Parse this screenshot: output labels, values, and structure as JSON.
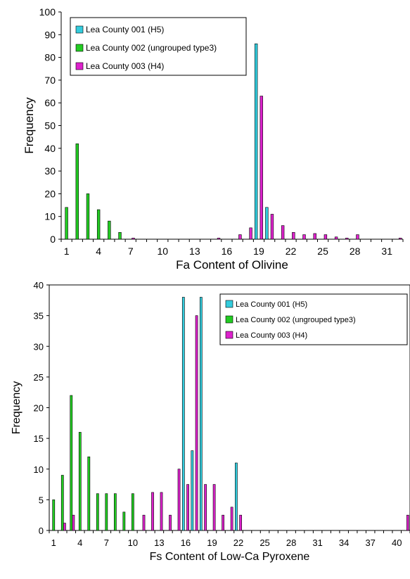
{
  "chart_data": [
    {
      "type": "bar",
      "title": "",
      "xlabel": "Fa Content of Olivine",
      "ylabel": "Frequency",
      "ylim": [
        0,
        100
      ],
      "yticks": [
        0,
        10,
        20,
        30,
        40,
        50,
        60,
        70,
        80,
        90,
        100
      ],
      "x": [
        1,
        2,
        3,
        4,
        5,
        6,
        7,
        8,
        9,
        10,
        11,
        12,
        13,
        14,
        15,
        16,
        17,
        18,
        19,
        20,
        21,
        22,
        23,
        24,
        25,
        26,
        27,
        28,
        29,
        30,
        31,
        32
      ],
      "xtick_labels": [
        "1",
        "4",
        "7",
        "10",
        "13",
        "16",
        "19",
        "22",
        "25",
        "28",
        "31"
      ],
      "xtick_values": [
        1,
        4,
        7,
        10,
        13,
        16,
        19,
        22,
        25,
        28,
        31
      ],
      "legend_position": "top-left",
      "series": [
        {
          "name": "Lea County 001 (H5)",
          "color": "#33ccdd",
          "values": [
            0,
            0,
            0,
            0,
            0,
            0,
            0,
            0,
            0,
            0,
            0,
            0,
            0,
            0,
            0,
            0,
            0,
            0,
            86,
            14,
            0,
            0,
            0,
            0,
            0,
            0,
            0,
            0,
            0,
            0,
            0,
            0
          ]
        },
        {
          "name": "Lea County 002 (ungrouped type3)",
          "color": "#22cc22",
          "values": [
            14,
            42,
            20,
            13,
            8,
            3,
            0,
            0,
            0,
            0,
            0,
            0,
            0,
            0,
            0,
            0,
            0,
            0,
            0,
            0,
            0,
            0,
            0,
            0,
            0,
            0,
            0,
            0,
            0,
            0,
            0,
            0
          ]
        },
        {
          "name": "Lea County 003 (H4)",
          "color": "#dd22cc",
          "values": [
            0,
            0,
            0,
            0,
            0,
            0,
            0.5,
            0,
            0,
            0,
            0,
            0,
            0,
            0,
            0.5,
            0,
            2,
            5,
            63,
            11,
            6,
            3,
            2,
            2.5,
            2,
            1,
            0.5,
            2,
            0,
            0,
            0,
            0.5
          ]
        }
      ]
    },
    {
      "type": "bar",
      "title": "",
      "xlabel": "Fs Content of Low-Ca Pyroxene",
      "ylabel": "Frequency",
      "ylim": [
        0,
        40
      ],
      "yticks": [
        0,
        5,
        10,
        15,
        20,
        25,
        30,
        35,
        40
      ],
      "x": [
        1,
        2,
        3,
        4,
        5,
        6,
        7,
        8,
        9,
        10,
        11,
        12,
        13,
        14,
        15,
        16,
        17,
        18,
        19,
        20,
        21,
        22,
        23,
        24,
        25,
        26,
        27,
        28,
        29,
        30,
        31,
        32,
        33,
        34,
        35,
        36,
        37,
        38,
        39,
        40,
        41
      ],
      "xtick_labels": [
        "1",
        "4",
        "7",
        "10",
        "13",
        "16",
        "19",
        "22",
        "25",
        "28",
        "31",
        "34",
        "37",
        "40"
      ],
      "xtick_values": [
        1,
        4,
        7,
        10,
        13,
        16,
        19,
        22,
        25,
        28,
        31,
        34,
        37,
        40
      ],
      "legend_position": "top-right",
      "series": [
        {
          "name": "Lea County 001 (H5)",
          "color": "#33ccdd",
          "values": [
            0,
            0,
            0,
            0,
            0,
            0,
            0,
            0,
            0,
            0,
            0,
            0,
            0,
            0,
            0,
            38,
            13,
            38,
            0,
            0,
            0,
            11,
            0,
            0,
            0,
            0,
            0,
            0,
            0,
            0,
            0,
            0,
            0,
            0,
            0,
            0,
            0,
            0,
            0,
            0,
            0
          ]
        },
        {
          "name": "Lea County 002 (ungrouped type3)",
          "color": "#22cc22",
          "values": [
            5,
            9,
            22,
            16,
            12,
            6,
            6,
            6,
            3,
            6,
            0,
            0,
            0,
            0,
            0,
            0,
            0,
            0,
            0,
            0,
            0,
            0,
            0,
            0,
            0,
            0,
            0,
            0,
            0,
            0,
            0,
            0,
            0,
            0,
            0,
            0,
            0,
            0,
            0,
            0,
            0
          ]
        },
        {
          "name": "Lea County 003 (H4)",
          "color": "#dd22cc",
          "values": [
            0,
            1.2,
            2.5,
            0,
            0,
            0,
            0,
            0,
            0,
            0,
            2.5,
            6.2,
            6.2,
            2.5,
            10,
            7.5,
            35,
            7.5,
            7.5,
            2.5,
            3.8,
            2.5,
            0,
            0,
            0,
            0,
            0,
            0,
            0,
            0,
            0,
            0,
            0,
            0,
            0,
            0,
            0,
            0,
            0,
            0,
            2.5
          ]
        }
      ]
    }
  ]
}
